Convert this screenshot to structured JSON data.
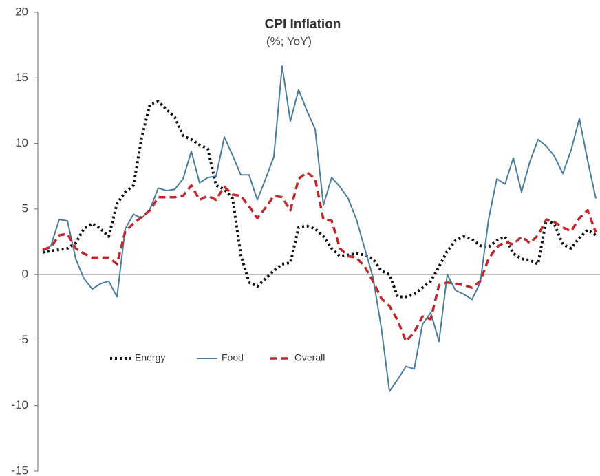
{
  "chart_data": {
    "type": "line",
    "title": "CPI Inflation",
    "subtitle": "(%; YoY)",
    "categories": [
      null,
      null,
      null,
      null,
      null,
      null,
      null,
      null,
      null,
      null,
      null,
      null,
      null,
      null,
      null,
      null,
      null,
      null,
      null,
      null,
      null,
      null,
      null,
      null,
      null,
      null,
      null,
      null,
      null,
      null,
      null,
      null,
      null,
      null,
      null,
      null,
      null,
      null,
      null,
      null,
      null,
      null,
      null,
      null,
      null,
      null,
      null,
      null,
      null,
      null,
      null,
      null,
      null,
      null,
      null,
      null,
      null,
      null,
      null,
      null,
      null,
      null,
      null,
      null,
      null,
      null,
      null,
      null
    ],
    "series": [
      {
        "name": "Energy",
        "color": "#111111",
        "style": "dotted",
        "values": [
          1.7,
          1.8,
          1.9,
          2.0,
          2.4,
          3.5,
          3.9,
          3.5,
          2.9,
          5.4,
          6.3,
          6.8,
          10.5,
          13.0,
          13.2,
          12.6,
          12.0,
          10.6,
          10.3,
          9.9,
          9.6,
          6.8,
          6.5,
          5.8,
          1.5,
          -0.6,
          -0.9,
          -0.3,
          0.3,
          0.8,
          0.9,
          3.6,
          3.7,
          3.5,
          2.9,
          2.0,
          1.4,
          1.5,
          1.6,
          1.5,
          1.2,
          0.3,
          0.0,
          -1.7,
          -1.7,
          -1.5,
          -1.0,
          -0.5,
          0.6,
          1.8,
          2.6,
          2.9,
          2.7,
          2.2,
          2.1,
          2.6,
          2.9,
          1.6,
          1.2,
          1.1,
          0.8,
          4.2,
          3.8,
          2.3,
          2.0,
          2.8,
          3.4,
          3.0
        ]
      },
      {
        "name": "Food",
        "color": "#4a7d9c",
        "style": "solid",
        "values": [
          1.8,
          2.2,
          4.2,
          4.1,
          1.2,
          -0.3,
          -1.1,
          -0.7,
          -0.5,
          -1.7,
          3.5,
          4.6,
          4.3,
          5.0,
          6.6,
          6.4,
          6.5,
          7.3,
          9.4,
          7.0,
          7.4,
          7.5,
          10.5,
          9.1,
          7.6,
          7.6,
          5.7,
          7.3,
          9.0,
          15.9,
          11.7,
          14.1,
          12.5,
          11.1,
          5.3,
          7.4,
          6.7,
          5.8,
          4.2,
          2.0,
          -0.2,
          -4,
          -8.9,
          -8.0,
          -7.0,
          -7.2,
          -3.8,
          -2.9,
          -5.1,
          0,
          -1.2,
          -1.5,
          -1.9,
          -0.6,
          4.2,
          7.3,
          6.9,
          8.9,
          6.3,
          8.6,
          10.3,
          9.8,
          9.0,
          7.7,
          9.5,
          11.9,
          8.7,
          5.8
        ]
      },
      {
        "name": "Overall",
        "color": "#c0282d",
        "style": "dashed",
        "values": [
          1.9,
          2.1,
          3.0,
          3.1,
          2.0,
          1.6,
          1.3,
          1.3,
          1.3,
          0.8,
          3.3,
          3.9,
          4.4,
          4.9,
          5.9,
          5.9,
          5.9,
          6.0,
          6.8,
          5.7,
          6.0,
          5.7,
          6.7,
          6.1,
          6.0,
          5.2,
          4.3,
          5.1,
          6.0,
          5.9,
          4.9,
          7.3,
          7.8,
          7.3,
          4.2,
          4.1,
          2.0,
          1.4,
          1.3,
          0.6,
          -0.5,
          -1.8,
          -2.4,
          -3.5,
          -5.1,
          -4.4,
          -3.2,
          -3.4,
          -0.8,
          -0.6,
          -0.7,
          -0.8,
          -1.0,
          -0.5,
          1.2,
          2.1,
          2.5,
          2.3,
          2.9,
          2.4,
          3.0,
          4.2,
          4.0,
          3.6,
          3.3,
          4.3,
          4.9,
          3.2
        ]
      }
    ],
    "ylim": [
      -15,
      20
    ],
    "yticks": [
      20,
      15,
      10,
      5,
      0,
      -5,
      -10,
      -15
    ],
    "grid": false
  }
}
